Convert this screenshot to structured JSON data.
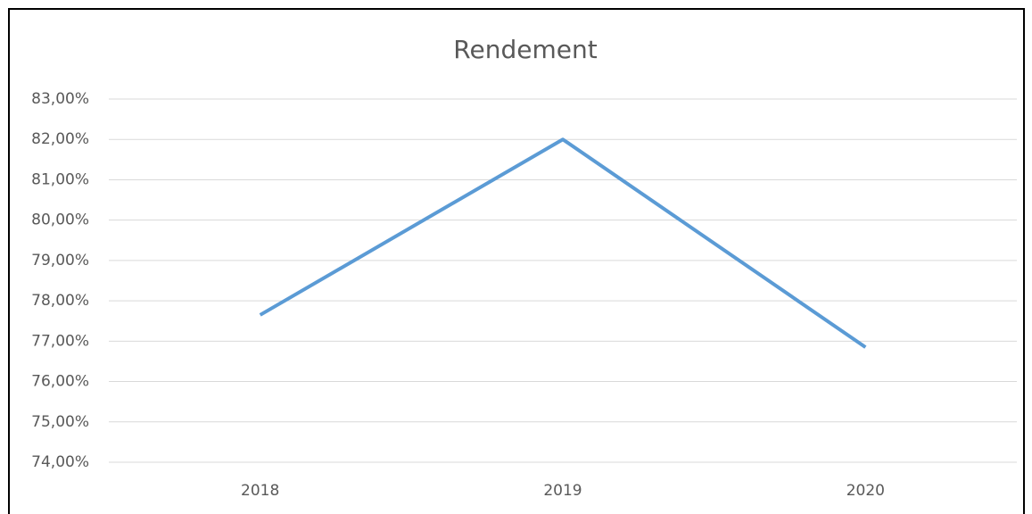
{
  "chart_data": {
    "type": "line",
    "title": "Rendement",
    "categories": [
      "2018",
      "2019",
      "2020"
    ],
    "series": [
      {
        "name": "Rendement",
        "color": "#5b9bd5",
        "values": [
          77.65,
          82.0,
          76.85
        ]
      }
    ],
    "ylim": [
      74,
      83
    ],
    "yticks": [
      {
        "value": 74,
        "label": "74,00%"
      },
      {
        "value": 75,
        "label": "75,00%"
      },
      {
        "value": 76,
        "label": "76,00%"
      },
      {
        "value": 77,
        "label": "77,00%"
      },
      {
        "value": 78,
        "label": "78,00%"
      },
      {
        "value": 79,
        "label": "79,00%"
      },
      {
        "value": 80,
        "label": "80,00%"
      },
      {
        "value": 81,
        "label": "81,00%"
      },
      {
        "value": 82,
        "label": "82,00%"
      },
      {
        "value": 83,
        "label": "83,00%"
      }
    ],
    "grid": true
  }
}
